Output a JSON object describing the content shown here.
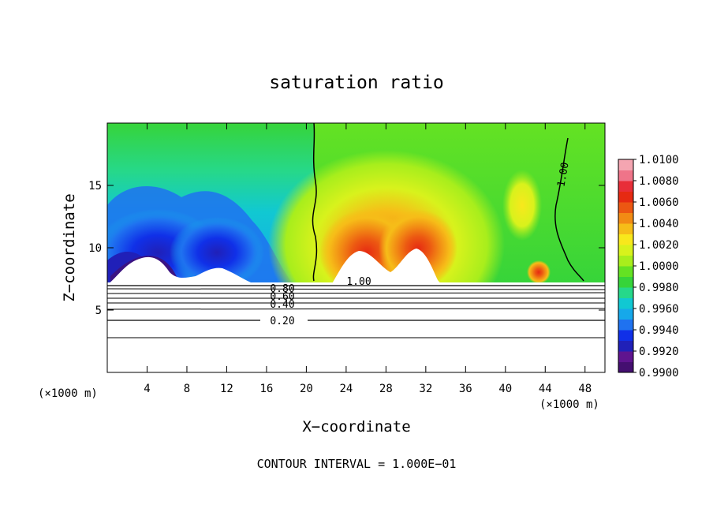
{
  "chart_data": {
    "type": "heatmap",
    "title": "saturation ratio",
    "xlabel": "X−coordinate",
    "ylabel": "Z−coordinate",
    "x_unit_left": "(×1000 m)",
    "x_unit_right": "(×1000 m)",
    "xlim": [
      0,
      50
    ],
    "ylim": [
      0,
      20
    ],
    "x_ticks": [
      4,
      8,
      12,
      16,
      20,
      24,
      28,
      32,
      36,
      40,
      44,
      48
    ],
    "x_tick_labels": [
      "4",
      "8",
      "12",
      "16",
      "20",
      "24",
      "28",
      "32",
      "36",
      "40",
      "44",
      "48"
    ],
    "y_ticks": [
      5,
      10,
      15
    ],
    "y_tick_labels": [
      "5",
      "10",
      "15"
    ],
    "colorbar": {
      "min": 0.99,
      "max": 1.01,
      "labels": [
        "1.0100",
        "1.0080",
        "1.0060",
        "1.0040",
        "1.0020",
        "1.0000",
        "0.9980",
        "0.9960",
        "0.9940",
        "0.9920",
        "0.9900"
      ],
      "colors": [
        "#440f70",
        "#5f148f",
        "#2020b8",
        "#1030e8",
        "#1f72f0",
        "#16a8ea",
        "#11c8d2",
        "#26d88a",
        "#36d43a",
        "#64e223",
        "#a8ee1c",
        "#d8f21c",
        "#f8e81c",
        "#f6bd18",
        "#f28b14",
        "#ec5712",
        "#e62a12",
        "#e82e39",
        "#ef7489",
        "#f4a5b1"
      ]
    },
    "contour_labels": [
      {
        "text": "1.00",
        "x": 46.2,
        "y": 15.1
      },
      {
        "text": "1.00",
        "x": 24.9,
        "y": 7.7
      },
      {
        "text": "0.80",
        "x": 17.6,
        "y": 7.6
      },
      {
        "text": "0.60",
        "x": 17.6,
        "y": 7.0
      },
      {
        "text": "0.40",
        "x": 17.6,
        "y": 6.2
      },
      {
        "text": "0.20",
        "x": 17.6,
        "y": 4.2
      }
    ],
    "footer": "CONTOUR INTERVAL = 1.000E−01"
  }
}
